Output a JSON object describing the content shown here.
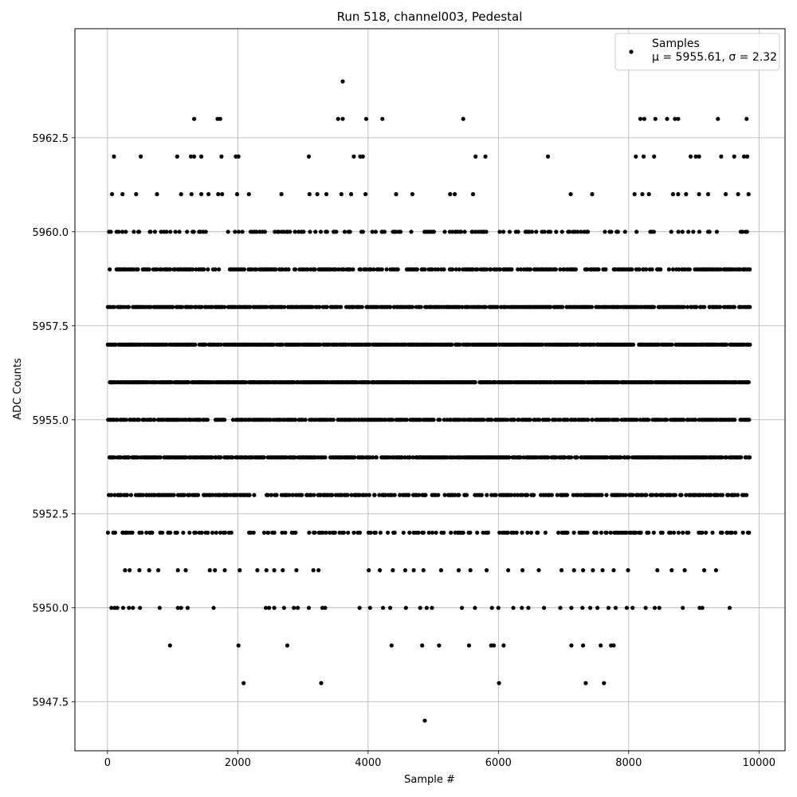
{
  "chart_data": {
    "type": "scatter",
    "title": "Run 518, channel003, Pedestal",
    "xlabel": "Sample #",
    "ylabel": "ADC Counts",
    "xlim": [
      -500,
      10400
    ],
    "ylim": [
      5946.2,
      5965.4
    ],
    "xticks": [
      0,
      2000,
      4000,
      6000,
      8000,
      10000
    ],
    "xtick_labels": [
      "0",
      "2000",
      "4000",
      "6000",
      "8000",
      "10000"
    ],
    "yticks": [
      5947.5,
      5950.0,
      5952.5,
      5955.0,
      5957.5,
      5960.0,
      5962.5
    ],
    "ytick_labels": [
      "5947.5",
      "5950.0",
      "5952.5",
      "5955.0",
      "5957.5",
      "5960.0",
      "5962.5"
    ],
    "grid": true,
    "legend": {
      "placement": "top-right",
      "entries": [
        {
          "label": "Samples",
          "sublabel": "μ = 5955.61, σ = 2.32"
        }
      ]
    },
    "series": [
      {
        "name": "Samples",
        "color": "#000000",
        "n_samples": 9850,
        "x_range": [
          0,
          9850
        ],
        "mean": 5955.61,
        "std": 2.32,
        "levels": [
          5947,
          5948,
          5949,
          5950,
          5951,
          5952,
          5953,
          5954,
          5955,
          5956,
          5957,
          5958,
          5959,
          5960,
          5961,
          5962,
          5963,
          5964
        ],
        "points": [
          [
            4870,
            5947
          ],
          [
            2090,
            5948
          ],
          [
            3280,
            5948
          ],
          [
            6010,
            5948
          ],
          [
            7340,
            5948
          ],
          [
            7620,
            5948
          ],
          [
            960,
            5949
          ],
          [
            2010,
            5949
          ],
          [
            2760,
            5949
          ],
          [
            4360,
            5949
          ],
          [
            4830,
            5949
          ],
          [
            5090,
            5949
          ],
          [
            5550,
            5949
          ],
          [
            5890,
            5949
          ],
          [
            5930,
            5949
          ],
          [
            6080,
            5949
          ],
          [
            7120,
            5949
          ],
          [
            7300,
            5949
          ],
          [
            7570,
            5949
          ],
          [
            7730,
            5949
          ],
          [
            7770,
            5949
          ],
          [
            60,
            5950
          ],
          [
            110,
            5950
          ],
          [
            150,
            5950
          ],
          [
            240,
            5950
          ],
          [
            330,
            5950
          ],
          [
            390,
            5950
          ],
          [
            500,
            5950
          ],
          [
            800,
            5950
          ],
          [
            1080,
            5950
          ],
          [
            1130,
            5950
          ],
          [
            1230,
            5950
          ],
          [
            1630,
            5950
          ],
          [
            2430,
            5950
          ],
          [
            2480,
            5950
          ],
          [
            2560,
            5950
          ],
          [
            2710,
            5950
          ],
          [
            2860,
            5950
          ],
          [
            2920,
            5950
          ],
          [
            3090,
            5950
          ],
          [
            3300,
            5950
          ],
          [
            3340,
            5950
          ],
          [
            3870,
            5950
          ],
          [
            4030,
            5950
          ],
          [
            4230,
            5950
          ],
          [
            4340,
            5950
          ],
          [
            4580,
            5950
          ],
          [
            4800,
            5950
          ],
          [
            4900,
            5950
          ],
          [
            4980,
            5950
          ],
          [
            5440,
            5950
          ],
          [
            5640,
            5950
          ],
          [
            5900,
            5950
          ],
          [
            6000,
            5950
          ],
          [
            6230,
            5950
          ],
          [
            6360,
            5950
          ],
          [
            6460,
            5950
          ],
          [
            6700,
            5950
          ],
          [
            6950,
            5950
          ],
          [
            7120,
            5950
          ],
          [
            7290,
            5950
          ],
          [
            7410,
            5950
          ],
          [
            7520,
            5950
          ],
          [
            7690,
            5950
          ],
          [
            7800,
            5950
          ],
          [
            7970,
            5950
          ],
          [
            8060,
            5950
          ],
          [
            8260,
            5950
          ],
          [
            8400,
            5950
          ],
          [
            8470,
            5950
          ],
          [
            8830,
            5950
          ],
          [
            9090,
            5950
          ],
          [
            9130,
            5950
          ],
          [
            9550,
            5950
          ],
          [
            270,
            5951
          ],
          [
            340,
            5951
          ],
          [
            490,
            5951
          ],
          [
            640,
            5951
          ],
          [
            780,
            5951
          ],
          [
            1080,
            5951
          ],
          [
            1200,
            5951
          ],
          [
            1570,
            5951
          ],
          [
            1650,
            5951
          ],
          [
            1800,
            5951
          ],
          [
            2030,
            5951
          ],
          [
            2300,
            5951
          ],
          [
            2440,
            5951
          ],
          [
            2560,
            5951
          ],
          [
            2690,
            5951
          ],
          [
            2900,
            5951
          ],
          [
            3160,
            5951
          ],
          [
            3240,
            5951
          ],
          [
            4010,
            5951
          ],
          [
            4180,
            5951
          ],
          [
            4380,
            5951
          ],
          [
            4570,
            5951
          ],
          [
            4700,
            5951
          ],
          [
            4850,
            5951
          ],
          [
            5120,
            5951
          ],
          [
            5390,
            5951
          ],
          [
            5570,
            5951
          ],
          [
            5820,
            5951
          ],
          [
            6150,
            5951
          ],
          [
            6370,
            5951
          ],
          [
            6620,
            5951
          ],
          [
            6970,
            5951
          ],
          [
            7160,
            5951
          ],
          [
            7300,
            5951
          ],
          [
            7450,
            5951
          ],
          [
            7600,
            5951
          ],
          [
            7770,
            5951
          ],
          [
            7990,
            5951
          ],
          [
            8440,
            5951
          ],
          [
            8660,
            5951
          ],
          [
            8860,
            5951
          ],
          [
            9160,
            5951
          ],
          [
            9340,
            5951
          ],
          [
            1700,
            5961
          ],
          [
            1760,
            5961
          ],
          [
            3100,
            5961
          ],
          [
            3220,
            5961
          ],
          [
            3360,
            5961
          ],
          [
            3590,
            5961
          ],
          [
            3740,
            5961
          ],
          [
            3960,
            5961
          ],
          [
            4430,
            5961
          ],
          [
            4680,
            5961
          ],
          [
            5260,
            5961
          ],
          [
            5330,
            5961
          ],
          [
            5610,
            5961
          ],
          [
            7110,
            5961
          ],
          [
            7440,
            5961
          ],
          [
            8090,
            5961
          ],
          [
            8210,
            5961
          ],
          [
            8310,
            5961
          ],
          [
            8680,
            5961
          ],
          [
            8760,
            5961
          ],
          [
            8880,
            5961
          ],
          [
            9080,
            5961
          ],
          [
            9220,
            5961
          ],
          [
            9490,
            5961
          ],
          [
            9680,
            5961
          ],
          [
            9840,
            5961
          ],
          [
            70,
            5961
          ],
          [
            230,
            5961
          ],
          [
            440,
            5961
          ],
          [
            760,
            5961
          ],
          [
            1130,
            5961
          ],
          [
            1290,
            5961
          ],
          [
            1440,
            5961
          ],
          [
            1550,
            5961
          ],
          [
            1990,
            5961
          ],
          [
            2170,
            5961
          ],
          [
            2670,
            5961
          ],
          [
            100,
            5962
          ],
          [
            510,
            5962
          ],
          [
            1070,
            5962
          ],
          [
            1280,
            5962
          ],
          [
            1330,
            5962
          ],
          [
            1440,
            5962
          ],
          [
            1750,
            5962
          ],
          [
            1970,
            5962
          ],
          [
            2010,
            5962
          ],
          [
            3090,
            5962
          ],
          [
            3780,
            5962
          ],
          [
            3880,
            5962
          ],
          [
            3920,
            5962
          ],
          [
            5650,
            5962
          ],
          [
            5800,
            5962
          ],
          [
            6760,
            5962
          ],
          [
            8110,
            5962
          ],
          [
            8230,
            5962
          ],
          [
            8390,
            5962
          ],
          [
            8950,
            5962
          ],
          [
            9030,
            5962
          ],
          [
            9080,
            5962
          ],
          [
            9420,
            5962
          ],
          [
            9620,
            5962
          ],
          [
            9770,
            5962
          ],
          [
            9820,
            5962
          ],
          [
            1330,
            5963
          ],
          [
            1690,
            5963
          ],
          [
            1730,
            5963
          ],
          [
            3540,
            5963
          ],
          [
            3610,
            5963
          ],
          [
            3970,
            5963
          ],
          [
            4220,
            5963
          ],
          [
            5460,
            5963
          ],
          [
            8180,
            5963
          ],
          [
            8240,
            5963
          ],
          [
            8410,
            5963
          ],
          [
            8590,
            5963
          ],
          [
            8710,
            5963
          ],
          [
            8760,
            5963
          ],
          [
            9370,
            5963
          ],
          [
            9810,
            5963
          ],
          [
            3610,
            5964
          ]
        ]
      }
    ]
  }
}
